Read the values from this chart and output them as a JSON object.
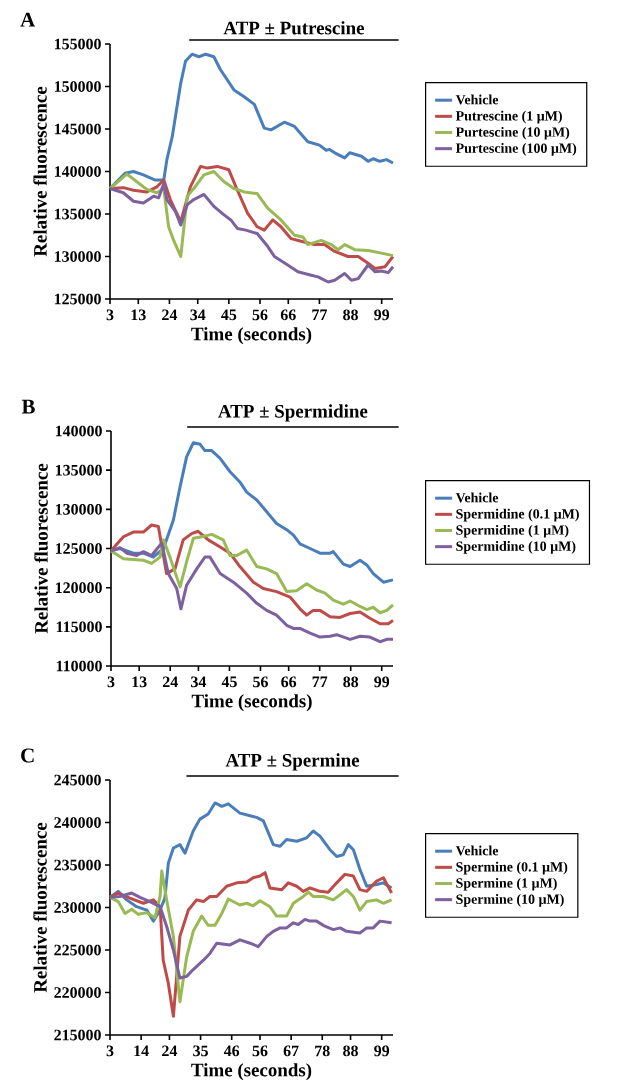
{
  "chart_data": [
    {
      "type": "line",
      "title": "A",
      "xlabel": "Time (seconds)",
      "ylabel": "Relative fluorescence",
      "xlim": [
        3,
        103
      ],
      "ylim": [
        125000,
        155000
      ],
      "xticks": [
        3,
        13,
        24,
        34,
        45,
        56,
        66,
        77,
        88,
        99
      ],
      "yticks": [
        125000,
        130000,
        135000,
        140000,
        145000,
        150000,
        155000
      ],
      "legend": "right",
      "annotations": [
        "ATP ± Putrescine"
      ],
      "series": [
        {
          "name": "Vehicle",
          "color": "#4a7ebb",
          "x": [
            3,
            8.3,
            11.3,
            14.8,
            19,
            22,
            23.1,
            25,
            28,
            29.7,
            32,
            34.4,
            36.8,
            39.7,
            42,
            46.8,
            50.4,
            54,
            57.5,
            59.9,
            64.6,
            68.2,
            72.9,
            77,
            79.4,
            80.6,
            82.4,
            85.9,
            87.7,
            91.9,
            94.2,
            96,
            98.4,
            100.7,
            103
          ],
          "values": [
            138000,
            139800,
            140000,
            139600,
            139000,
            139000,
            141400,
            144100,
            150400,
            153000,
            153800,
            153500,
            153800,
            153500,
            152000,
            149600,
            148800,
            147900,
            145100,
            144900,
            145800,
            145300,
            143500,
            143100,
            142500,
            142600,
            142200,
            141600,
            142200,
            141800,
            141200,
            141500,
            141200,
            141400,
            141000
          ]
        },
        {
          "name": "Putrescine (1 µM)",
          "color": "#be4b48",
          "x": [
            3,
            7.7,
            11.3,
            16,
            19.6,
            22,
            24.3,
            28,
            31.4,
            35,
            37.4,
            40.9,
            45,
            48,
            51.6,
            55,
            57.5,
            60.5,
            63.4,
            67,
            70.5,
            75.3,
            78.8,
            82.4,
            87.1,
            90.7,
            94.2,
            96.6,
            100.2,
            103
          ],
          "values": [
            138000,
            138100,
            137800,
            137600,
            138200,
            139000,
            136700,
            134100,
            138200,
            140600,
            140400,
            140600,
            140200,
            137800,
            135100,
            133500,
            133100,
            134300,
            133500,
            132100,
            131800,
            131400,
            131400,
            130600,
            130000,
            130000,
            129200,
            128600,
            128800,
            130000
          ]
        },
        {
          "name": "Purtescine (10 µM)",
          "color": "#98b954",
          "x": [
            3,
            8.9,
            12.5,
            16,
            19.6,
            22,
            23.7,
            25.5,
            28,
            30.3,
            32.6,
            36.2,
            39.7,
            43.3,
            46.8,
            50.4,
            55,
            58.7,
            63.4,
            68.2,
            71.2,
            72.9,
            77.6,
            81.2,
            83.6,
            85.9,
            89.5,
            94.2,
            98.9,
            103
          ],
          "values": [
            138000,
            139700,
            138800,
            137900,
            137500,
            138000,
            133500,
            131900,
            130000,
            137100,
            138000,
            139600,
            140000,
            138800,
            138000,
            137600,
            137400,
            135700,
            134300,
            132500,
            132300,
            131400,
            131900,
            131400,
            130800,
            131400,
            130800,
            130700,
            130400,
            130100
          ]
        },
        {
          "name": "Purtescine (100 µM)",
          "color": "#7d60a0",
          "x": [
            3,
            7.7,
            11.3,
            14.8,
            18.4,
            20.2,
            22,
            23.1,
            26.1,
            28,
            30.3,
            32.6,
            36.2,
            39.7,
            43.3,
            45.7,
            48,
            51,
            55,
            58.7,
            61.1,
            65.8,
            69.4,
            74.1,
            76.5,
            80.1,
            82.4,
            85.9,
            88.3,
            90.7,
            94.2,
            96.6,
            98.9,
            101.3,
            103
          ],
          "values": [
            138000,
            137500,
            136500,
            136300,
            137100,
            136900,
            138600,
            136700,
            135300,
            133700,
            136100,
            136700,
            137300,
            135900,
            134900,
            134300,
            133300,
            133100,
            132700,
            131200,
            130000,
            129000,
            128200,
            127800,
            127600,
            127000,
            127200,
            128000,
            127200,
            127400,
            129000,
            128200,
            128300,
            128100,
            128800
          ]
        }
      ]
    },
    {
      "type": "line",
      "title": "B",
      "xlabel": "Time (seconds)",
      "ylabel": "Relative fluorescence",
      "xlim": [
        3,
        103
      ],
      "ylim": [
        110000,
        140000
      ],
      "xticks": [
        3,
        13,
        24,
        34,
        45,
        56,
        66,
        77,
        88,
        99
      ],
      "yticks": [
        110000,
        115000,
        120000,
        125000,
        130000,
        135000,
        140000
      ],
      "legend": "right",
      "annotations": [
        "ATP ± Spermidine"
      ],
      "series": [
        {
          "name": "Vehicle",
          "color": "#4a7ebb",
          "x": [
            3,
            6.2,
            10.9,
            14.5,
            18,
            21.6,
            25.1,
            27.5,
            29.8,
            32.2,
            34.6,
            36.3,
            38.7,
            41.7,
            45.2,
            48.7,
            51.1,
            54.7,
            58.2,
            61.7,
            65.3,
            67.7,
            70,
            73.6,
            77.1,
            80.7,
            81.8,
            85.4,
            87.8,
            91.3,
            93.7,
            96,
            99.6,
            103
          ],
          "values": [
            124700,
            125000,
            124400,
            124400,
            123900,
            125000,
            128600,
            132900,
            136700,
            138500,
            138300,
            137500,
            137500,
            136500,
            134800,
            133500,
            132200,
            131200,
            129700,
            128200,
            127400,
            126700,
            125600,
            125000,
            124400,
            124400,
            124600,
            123000,
            122700,
            123500,
            122900,
            121800,
            120700,
            121000
          ]
        },
        {
          "name": "Spermidine (0.1 µM)",
          "color": "#be4b48",
          "x": [
            3,
            7.4,
            10.9,
            14.5,
            17.4,
            19.8,
            22.7,
            25.7,
            28.6,
            31.6,
            33.9,
            37.5,
            41.7,
            45.2,
            48.7,
            53.5,
            57,
            61.7,
            66.5,
            70,
            72.4,
            74.7,
            77.1,
            80.7,
            84.2,
            87.8,
            91.3,
            94.8,
            98.4,
            101.3,
            103
          ],
          "values": [
            124700,
            126500,
            127100,
            127100,
            128000,
            127800,
            121800,
            122400,
            126100,
            126900,
            127200,
            126100,
            125200,
            124400,
            122700,
            120700,
            119900,
            119500,
            118800,
            117300,
            116500,
            117100,
            117100,
            116300,
            116200,
            116700,
            116900,
            116100,
            115400,
            115400,
            115800
          ]
        },
        {
          "name": "Spermidine (1 µM)",
          "color": "#98b954",
          "x": [
            3,
            7.4,
            10.9,
            14.5,
            17.4,
            20.4,
            21.6,
            23.9,
            27.5,
            29.8,
            32.2,
            35.2,
            38.7,
            42.8,
            45.2,
            47.6,
            51.1,
            54.7,
            58.2,
            61.7,
            65.3,
            68.8,
            72.4,
            75.9,
            78.9,
            81.8,
            85.4,
            87.8,
            91.3,
            93.7,
            96,
            98.4,
            100.8,
            103
          ],
          "values": [
            124700,
            123700,
            123600,
            123500,
            123100,
            123900,
            126100,
            123900,
            120100,
            123300,
            126300,
            126500,
            126800,
            126100,
            124100,
            124100,
            124800,
            122700,
            122400,
            121800,
            119500,
            119600,
            120500,
            119700,
            119300,
            118400,
            117900,
            118300,
            117600,
            117200,
            117500,
            116800,
            117100,
            117800
          ]
        },
        {
          "name": "Spermidine (10 µM)",
          "color": "#7d60a0",
          "x": [
            3,
            6.2,
            8.6,
            12.1,
            14.5,
            17.4,
            21,
            23.3,
            26.3,
            27.8,
            29.8,
            33.4,
            36.3,
            38.1,
            41.7,
            46.4,
            51.1,
            54.7,
            58.2,
            61.7,
            65.3,
            67.7,
            70,
            73.6,
            77.1,
            80.7,
            83,
            87.8,
            91.3,
            94.8,
            98.4,
            100.8,
            103
          ],
          "values": [
            124700,
            125100,
            124400,
            124100,
            124600,
            124100,
            125700,
            121800,
            119900,
            117300,
            120300,
            122400,
            123900,
            123900,
            121800,
            120700,
            119300,
            118000,
            117100,
            116500,
            115200,
            114800,
            114800,
            114200,
            113700,
            113800,
            114000,
            113400,
            113800,
            113700,
            113100,
            113400,
            113400
          ]
        }
      ]
    },
    {
      "type": "line",
      "title": "C",
      "xlabel": "Time (seconds)",
      "ylabel": "Relative fluorescence",
      "xlim": [
        3,
        103
      ],
      "ylim": [
        215000,
        245000
      ],
      "xticks": [
        3,
        14,
        24,
        35,
        46,
        56,
        67,
        78,
        88,
        99
      ],
      "yticks": [
        215000,
        220000,
        225000,
        230000,
        235000,
        240000,
        245000
      ],
      "legend": "right",
      "annotations": [
        "ATP ± Spermine"
      ],
      "series": [
        {
          "name": "Vehicle",
          "color": "#4a7ebb",
          "x": [
            3,
            5.9,
            8.9,
            12.4,
            16,
            18.3,
            20.7,
            22.4,
            23.6,
            25.4,
            27.7,
            29.5,
            32.4,
            34.8,
            37.7,
            40.1,
            42.5,
            44.8,
            48.9,
            52.5,
            54.8,
            57.2,
            60.7,
            63.1,
            65.4,
            69,
            72.5,
            74.8,
            77.2,
            80.7,
            83.1,
            85.4,
            87.2,
            89,
            91.3,
            93.7,
            97.2,
            99.6,
            102.5
          ],
          "values": [
            231200,
            231900,
            230900,
            230100,
            229700,
            228400,
            229700,
            231100,
            235200,
            237000,
            237400,
            236400,
            239000,
            240400,
            241000,
            242300,
            241900,
            242200,
            241100,
            240800,
            240600,
            240200,
            237400,
            237200,
            238000,
            237800,
            238200,
            239000,
            238400,
            236800,
            236000,
            236200,
            237400,
            236800,
            234500,
            232500,
            232700,
            232900,
            232300
          ]
        },
        {
          "name": "Spermine (0.1 µM)",
          "color": "#be4b48",
          "x": [
            3,
            5.9,
            10,
            14.8,
            18.3,
            20.7,
            21.8,
            23.6,
            25.4,
            27.7,
            30.7,
            33.6,
            36,
            38.3,
            40.7,
            44.2,
            47.8,
            51.3,
            53.6,
            56,
            57.8,
            59.5,
            63.7,
            66,
            69,
            71.3,
            73.7,
            77.2,
            80.1,
            83.1,
            86,
            89,
            91.3,
            93.7,
            97.2,
            99.6,
            102.5
          ],
          "values": [
            231200,
            231700,
            231100,
            230500,
            230900,
            230100,
            223800,
            221100,
            217200,
            226600,
            229700,
            230900,
            230700,
            231300,
            231300,
            232500,
            232900,
            233000,
            233500,
            233700,
            234100,
            232300,
            232100,
            232900,
            232500,
            231900,
            232300,
            231900,
            231800,
            232900,
            233900,
            233700,
            232100,
            231900,
            233100,
            233500,
            231700
          ]
        },
        {
          "name": "Spermine (1 µM)",
          "color": "#98b954",
          "x": [
            3,
            5.9,
            8.3,
            10.7,
            13,
            16,
            18.9,
            20.7,
            21.3,
            23,
            25.4,
            27.7,
            30.1,
            32.4,
            35.4,
            37.7,
            40.1,
            42.5,
            44.8,
            48.9,
            51.3,
            53.6,
            56,
            59.5,
            61.8,
            65.4,
            67.8,
            71.3,
            73.1,
            74.8,
            78.4,
            81.9,
            84.3,
            86.6,
            89,
            91.3,
            93.7,
            97.2,
            99.6,
            102.5
          ],
          "values": [
            231200,
            230700,
            229300,
            229800,
            229200,
            229400,
            228800,
            231300,
            234300,
            230900,
            226600,
            218900,
            224200,
            227200,
            229000,
            227900,
            227900,
            229300,
            231000,
            230300,
            230500,
            230200,
            230800,
            230100,
            229000,
            229000,
            230500,
            231300,
            231800,
            231300,
            231300,
            230900,
            231500,
            232100,
            231300,
            229700,
            230700,
            230900,
            230500,
            230900
          ]
        },
        {
          "name": "Spermine (10 µM)",
          "color": "#7d60a0",
          "x": [
            3,
            6.5,
            10.7,
            13.6,
            17.1,
            20.7,
            23,
            25.4,
            27.7,
            30.1,
            32.4,
            36,
            38.3,
            40.7,
            45.4,
            48.9,
            52.5,
            55.4,
            58.4,
            60.7,
            63.1,
            65.4,
            67.8,
            69.5,
            71.9,
            73.7,
            76,
            78.9,
            81.9,
            84.3,
            86.6,
            91.3,
            93.7,
            96,
            98.4,
            102.5
          ],
          "values": [
            231200,
            231300,
            231700,
            231200,
            230700,
            230100,
            227800,
            225000,
            221700,
            221900,
            222700,
            223800,
            224600,
            225800,
            225600,
            226200,
            225800,
            225400,
            226600,
            227200,
            227600,
            227600,
            228200,
            228000,
            228600,
            228400,
            228400,
            227800,
            227400,
            227600,
            227200,
            227000,
            227600,
            227600,
            228400,
            228200
          ]
        }
      ]
    }
  ]
}
